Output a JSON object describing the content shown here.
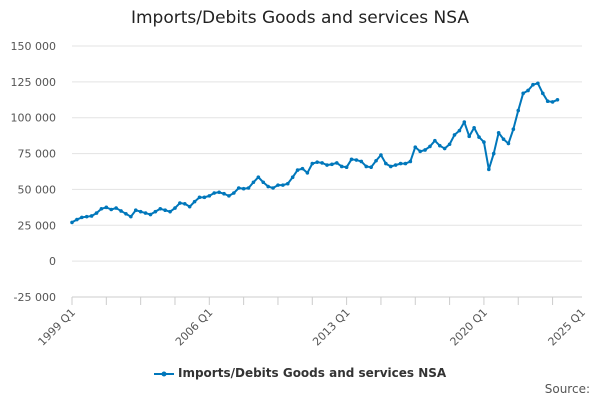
{
  "chart_data": {
    "type": "line",
    "title": "Imports/Debits Goods and services NSA",
    "xlabel": "",
    "ylabel": "",
    "x_start": "1999 Q1",
    "frequency": "quarterly",
    "x_tick_labels": [
      "1999 Q1",
      "2006 Q1",
      "2013 Q1",
      "2020 Q1",
      "2025 Q1"
    ],
    "y_tick_labels": [
      "150 000",
      "125 000",
      "100 000",
      "75 000",
      "50 000",
      "25 000",
      "0",
      "-25 000"
    ],
    "ylim": [
      -25000,
      150000
    ],
    "grid": true,
    "legend_position": "bottom",
    "series": [
      {
        "name": "Imports/Debits Goods and services NSA",
        "color": "#0077bb",
        "values": [
          27000,
          29000,
          30500,
          31000,
          31500,
          33500,
          36500,
          37500,
          36000,
          37000,
          35000,
          33000,
          31000,
          35500,
          34500,
          33500,
          32500,
          34500,
          36500,
          35500,
          34500,
          37000,
          40500,
          40000,
          38000,
          41500,
          44500,
          44500,
          45500,
          47500,
          48000,
          47000,
          45500,
          47500,
          51000,
          50500,
          51000,
          55000,
          58500,
          55000,
          52000,
          51000,
          53000,
          53000,
          54000,
          58500,
          63500,
          64500,
          61500,
          68000,
          69000,
          68500,
          67000,
          67500,
          68500,
          66000,
          65500,
          71000,
          70500,
          69500,
          66000,
          65500,
          70000,
          74000,
          68000,
          66000,
          67000,
          68000,
          68000,
          69500,
          79500,
          76500,
          77500,
          80000,
          84000,
          80500,
          78500,
          81500,
          88000,
          91000,
          97000,
          87000,
          93000,
          86500,
          83000,
          64000,
          75000,
          89500,
          85000,
          82000,
          92000,
          105000,
          117000,
          119000,
          123000,
          124000,
          117000,
          111500,
          111000,
          112500
        ]
      }
    ]
  },
  "source_label": "Source:"
}
